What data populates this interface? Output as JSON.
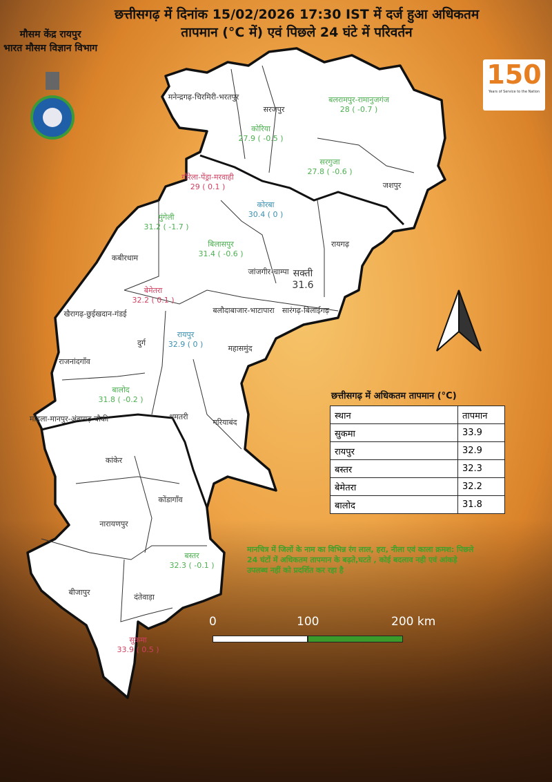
{
  "title": {
    "line1": "छत्तीसगढ़ में दिनांक 15/02/2026 17:30 IST में दर्ज हुआ अधिकतम",
    "line2": "तापमान (°C में) एवं पिछले 24 घंटे में परिवर्तन"
  },
  "org": {
    "line1": "मौसम केंद्र रायपुर",
    "line2": "भारत मौसम विज्ञान विभाग"
  },
  "logo150": {
    "number": "150",
    "tagline": "Years of Service to the Nation"
  },
  "colors": {
    "increase": "#d04060",
    "decrease": "#4caf50",
    "no_change": "#3a8fb0",
    "no_data": "#333333"
  },
  "districts": [
    {
      "name": "मनेन्द्रगढ़-चिरमिरी-भरतपुर",
      "value": ""
    },
    {
      "name": "सरजपुर",
      "value": ""
    },
    {
      "name": "बलरामपुर-रामानुजगंज",
      "value": "28 ( -0.7 )"
    },
    {
      "name": "कोरिया",
      "value": "27.9 ( -0.5 )"
    },
    {
      "name": "सरगुजा",
      "value": "27.8 ( -0.6 )"
    },
    {
      "name": "जशपुर",
      "value": ""
    },
    {
      "name": "गौरेला-पेंड्रा-मरवाही",
      "value": "29 ( 0.1 )"
    },
    {
      "name": "कोरबा",
      "value": "30.4 ( 0 )"
    },
    {
      "name": "मुंगेली",
      "value": "31.2 ( -1.7 )"
    },
    {
      "name": "रायगढ़",
      "value": ""
    },
    {
      "name": "बिलासपुर",
      "value": "31.4 ( -0.6 )"
    },
    {
      "name": "कबीरधाम",
      "value": ""
    },
    {
      "name": "जांजगीर-चाम्पा",
      "value": ""
    },
    {
      "name": "सक्ती",
      "value": "31.6"
    },
    {
      "name": "बेमेतरा",
      "value": "32.2 ( 0.1 )"
    },
    {
      "name": "खैरागढ़-छुईखदान-गंडई",
      "value": ""
    },
    {
      "name": "बलौदाबाजार-भाटापारा",
      "value": ""
    },
    {
      "name": "सारंगढ़-बिलाईगढ़",
      "value": ""
    },
    {
      "name": "रायपुर",
      "value": "32.9 ( 0 )"
    },
    {
      "name": "दुर्ग",
      "value": ""
    },
    {
      "name": "महासमुंद",
      "value": ""
    },
    {
      "name": "राजनांदगाँव",
      "value": ""
    },
    {
      "name": "बालोद",
      "value": "31.8 ( -0.2 )"
    },
    {
      "name": "मोहला-मानपुर-अंबागढ़ चौकी",
      "value": ""
    },
    {
      "name": "धमतरी",
      "value": ""
    },
    {
      "name": "गरियाबंद",
      "value": ""
    },
    {
      "name": "कांकेर",
      "value": ""
    },
    {
      "name": "कोंडागाँव",
      "value": ""
    },
    {
      "name": "नारायणपुर",
      "value": ""
    },
    {
      "name": "बस्तर",
      "value": "32.3 ( -0.1 )"
    },
    {
      "name": "बीजापुर",
      "value": ""
    },
    {
      "name": "दंतेवाड़ा",
      "value": ""
    },
    {
      "name": "सुकमा",
      "value": "33.9 ( 0.5 )"
    }
  ],
  "table": {
    "title": "छत्तीसगढ़ में  अधिकतम तापमान (°C)",
    "headers": [
      "स्थान",
      "तापमान"
    ],
    "rows": [
      [
        "सुकमा",
        "33.9"
      ],
      [
        "रायपुर",
        "32.9"
      ],
      [
        "बस्तर",
        "32.3"
      ],
      [
        "बेमेतरा",
        "32.2"
      ],
      [
        "बालोद",
        "31.8"
      ]
    ]
  },
  "note": "मानचित्र में जिलों के नाम का विभिन्न रंग लाल, हरा, नीला एवं काला क्रमश: पिछले 24 घंटों में अधिकतम तापमान के बढ़ते,घटते , कोई बदलाव नही एवं आंकड़े उपलब्ध नहीं को प्रदर्शित कर रहा है",
  "scale": {
    "labels": [
      "0",
      "100",
      "200 km"
    ]
  }
}
